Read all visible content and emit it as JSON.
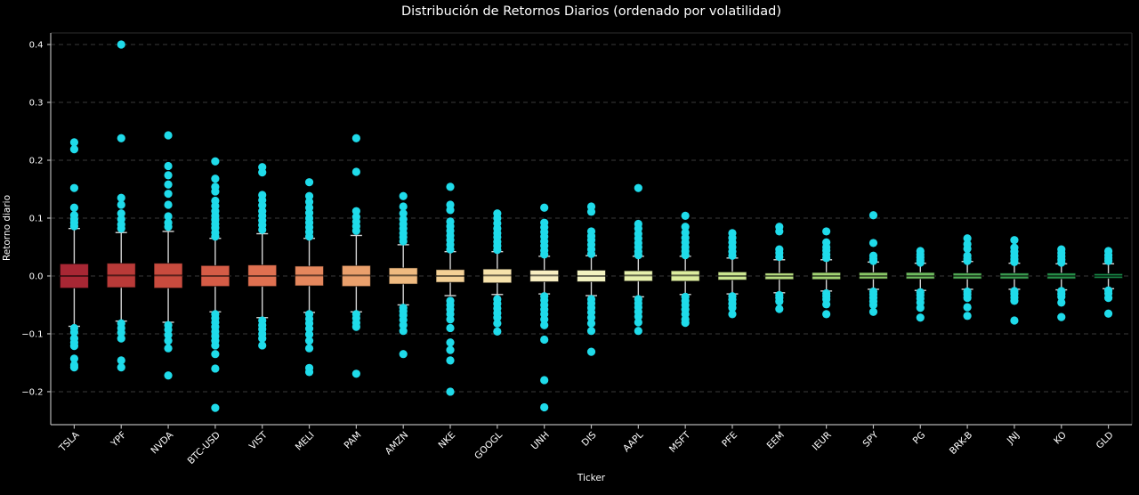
{
  "chart_data": {
    "type": "boxplot",
    "title": "Distribución de Retornos Diarios (ordenado por volatilidad)",
    "xlabel": "Ticker",
    "ylabel": "Retorno diario",
    "ylim": [
      -0.257,
      0.42
    ],
    "yticks": [
      {
        "v": 0.4,
        "label": "0.4"
      },
      {
        "v": 0.3,
        "label": "0.3"
      },
      {
        "v": 0.2,
        "label": "0.2"
      },
      {
        "v": 0.1,
        "label": "0.1"
      },
      {
        "v": 0.0,
        "label": "0.0"
      },
      {
        "v": -0.1,
        "label": "−0.1"
      },
      {
        "v": -0.2,
        "label": "−0.2"
      }
    ],
    "grid": "horizontal-dashed",
    "legend": null,
    "palette": "RdYlGn (red = most volatile, green = least volatile)",
    "colors": {
      "background": "#000000",
      "text": "#ffffff",
      "grid": "#3a3a3a",
      "spine": "#b4b4b4",
      "spine_faint": "#2e2e2e",
      "whisker": "#d4d4d4",
      "box_edge": "rgba(0,0,0,0.6)",
      "median": "rgba(0,0,0,0.55)",
      "outlier": "#1fdbea"
    },
    "series": [
      {
        "label": "TSLA",
        "color": "#a82734",
        "whisker_low": -0.087,
        "q1": -0.021,
        "median": 0.0,
        "q3": 0.021,
        "whisker_high": 0.082,
        "outliers": [
          0.231,
          0.219,
          0.152,
          0.118,
          0.105,
          0.098,
          0.092,
          0.086,
          -0.09,
          -0.097,
          -0.108,
          -0.115,
          -0.121,
          -0.143,
          -0.154,
          -0.158
        ]
      },
      {
        "label": "YPF",
        "color": "#b93a38",
        "whisker_low": -0.078,
        "q1": -0.02,
        "median": 0.001,
        "q3": 0.022,
        "whisker_high": 0.075,
        "outliers": [
          0.4,
          0.238,
          0.135,
          0.123,
          0.108,
          0.098,
          0.089,
          0.082,
          -0.082,
          -0.09,
          -0.098,
          -0.108,
          -0.146,
          -0.158
        ]
      },
      {
        "label": "NVDA",
        "color": "#c84b3e",
        "whisker_low": -0.08,
        "q1": -0.021,
        "median": 0.001,
        "q3": 0.022,
        "whisker_high": 0.077,
        "outliers": [
          0.243,
          0.19,
          0.174,
          0.158,
          0.142,
          0.123,
          0.103,
          0.092,
          0.085,
          -0.085,
          -0.093,
          -0.102,
          -0.112,
          -0.125,
          -0.172
        ]
      },
      {
        "label": "BTC-USD",
        "color": "#d55c46",
        "whisker_low": -0.062,
        "q1": -0.018,
        "median": 0.0,
        "q3": 0.018,
        "whisker_high": 0.065,
        "outliers": [
          0.198,
          0.168,
          0.154,
          0.146,
          0.13,
          0.121,
          0.112,
          0.104,
          0.097,
          0.09,
          0.083,
          0.075,
          0.068,
          -0.066,
          -0.073,
          -0.08,
          -0.088,
          -0.096,
          -0.104,
          -0.112,
          -0.12,
          -0.135,
          -0.16,
          -0.228
        ]
      },
      {
        "label": "VIST",
        "color": "#df7050",
        "whisker_low": -0.072,
        "q1": -0.018,
        "median": 0.0,
        "q3": 0.019,
        "whisker_high": 0.073,
        "outliers": [
          0.188,
          0.179,
          0.14,
          0.131,
          0.122,
          0.112,
          0.104,
          0.096,
          0.088,
          0.08,
          -0.077,
          -0.085,
          -0.092,
          -0.1,
          -0.108,
          -0.12
        ]
      },
      {
        "label": "MELI",
        "color": "#e4875d",
        "whisker_low": -0.063,
        "q1": -0.017,
        "median": 0.001,
        "q3": 0.017,
        "whisker_high": 0.065,
        "outliers": [
          0.162,
          0.138,
          0.128,
          0.118,
          0.109,
          0.1,
          0.092,
          0.084,
          0.076,
          0.068,
          -0.066,
          -0.074,
          -0.082,
          -0.091,
          -0.101,
          -0.112,
          -0.125,
          -0.159,
          -0.166
        ]
      },
      {
        "label": "PAM",
        "color": "#eaa06c",
        "whisker_low": -0.062,
        "q1": -0.018,
        "median": 0.001,
        "q3": 0.018,
        "whisker_high": 0.07,
        "outliers": [
          0.238,
          0.18,
          0.112,
          0.102,
          0.094,
          0.086,
          0.078,
          -0.066,
          -0.073,
          -0.081,
          -0.088,
          -0.169
        ]
      },
      {
        "label": "AMZN",
        "color": "#efba80",
        "whisker_low": -0.05,
        "q1": -0.014,
        "median": 0.001,
        "q3": 0.014,
        "whisker_high": 0.054,
        "outliers": [
          0.138,
          0.12,
          0.108,
          0.098,
          0.09,
          0.082,
          0.074,
          0.067,
          0.06,
          -0.055,
          -0.061,
          -0.068,
          -0.076,
          -0.085,
          -0.095,
          -0.135
        ]
      },
      {
        "label": "NKE",
        "color": "#f3d096",
        "whisker_low": -0.034,
        "q1": -0.011,
        "median": 0.0,
        "q3": 0.011,
        "whisker_high": 0.042,
        "outliers": [
          0.154,
          0.123,
          0.114,
          0.094,
          0.086,
          0.078,
          0.07,
          0.062,
          0.054,
          0.046,
          -0.043,
          -0.05,
          -0.058,
          -0.066,
          -0.075,
          -0.09,
          -0.115,
          -0.128,
          -0.146,
          -0.2
        ]
      },
      {
        "label": "GOOGL",
        "color": "#f6e2ab",
        "whisker_low": -0.032,
        "q1": -0.012,
        "median": 0.001,
        "q3": 0.012,
        "whisker_high": 0.042,
        "outliers": [
          0.108,
          0.1,
          0.091,
          0.082,
          0.074,
          0.067,
          0.059,
          0.052,
          0.045,
          -0.04,
          -0.048,
          -0.056,
          -0.064,
          -0.072,
          -0.082,
          -0.096
        ]
      },
      {
        "label": "UNH",
        "color": "#f9efc2",
        "whisker_low": -0.031,
        "q1": -0.01,
        "median": 0.001,
        "q3": 0.01,
        "whisker_high": 0.034,
        "outliers": [
          0.118,
          0.092,
          0.084,
          0.076,
          0.068,
          0.06,
          0.052,
          0.044,
          0.037,
          -0.035,
          -0.042,
          -0.05,
          -0.058,
          -0.066,
          -0.075,
          -0.085,
          -0.11,
          -0.18,
          -0.227
        ]
      },
      {
        "label": "DIS",
        "color": "#f2f2c0",
        "whisker_low": -0.034,
        "q1": -0.01,
        "median": 0.0,
        "q3": 0.01,
        "whisker_high": 0.035,
        "outliers": [
          0.12,
          0.111,
          0.077,
          0.069,
          0.062,
          0.054,
          0.046,
          0.038,
          -0.04,
          -0.047,
          -0.055,
          -0.063,
          -0.072,
          -0.082,
          -0.095,
          -0.131
        ]
      },
      {
        "label": "AAPL",
        "color": "#e7f0ad",
        "whisker_low": -0.036,
        "q1": -0.009,
        "median": 0.001,
        "q3": 0.009,
        "whisker_high": 0.034,
        "outliers": [
          0.152,
          0.09,
          0.082,
          0.073,
          0.065,
          0.057,
          0.05,
          0.042,
          0.036,
          -0.04,
          -0.047,
          -0.054,
          -0.062,
          -0.07,
          -0.08,
          -0.095
        ]
      },
      {
        "label": "MSFT",
        "color": "#dcec9e",
        "whisker_low": -0.032,
        "q1": -0.009,
        "median": 0.001,
        "q3": 0.009,
        "whisker_high": 0.034,
        "outliers": [
          0.104,
          0.085,
          0.075,
          0.066,
          0.058,
          0.05,
          0.043,
          0.036,
          -0.036,
          -0.043,
          -0.05,
          -0.058,
          -0.066,
          -0.075,
          -0.081
        ]
      },
      {
        "label": "PFE",
        "color": "#cbe690",
        "whisker_low": -0.031,
        "q1": -0.007,
        "median": 0.0,
        "q3": 0.007,
        "whisker_high": 0.031,
        "outliers": [
          0.074,
          0.066,
          0.058,
          0.05,
          0.042,
          0.035,
          -0.035,
          -0.041,
          -0.048,
          -0.055,
          -0.066
        ]
      },
      {
        "label": "EEM",
        "color": "#b8dd81",
        "whisker_low": -0.029,
        "q1": -0.006,
        "median": 0.0,
        "q3": 0.005,
        "whisker_high": 0.028,
        "outliers": [
          0.085,
          0.077,
          0.046,
          0.04,
          0.033,
          -0.033,
          -0.038,
          -0.044,
          -0.057
        ]
      },
      {
        "label": "IEUR",
        "color": "#a2d373",
        "whisker_low": -0.026,
        "q1": -0.006,
        "median": 0.0,
        "q3": 0.006,
        "whisker_high": 0.028,
        "outliers": [
          0.077,
          0.058,
          0.05,
          0.044,
          0.037,
          0.031,
          -0.03,
          -0.035,
          -0.04,
          -0.049,
          -0.066
        ]
      },
      {
        "label": "SPY",
        "color": "#89c766",
        "whisker_low": -0.023,
        "q1": -0.005,
        "median": 0.0,
        "q3": 0.006,
        "whisker_high": 0.024,
        "outliers": [
          0.105,
          0.057,
          0.035,
          0.03,
          0.026,
          -0.027,
          -0.032,
          -0.038,
          -0.044,
          -0.05,
          -0.062
        ]
      },
      {
        "label": "PG",
        "color": "#6fbc5f",
        "whisker_low": -0.025,
        "q1": -0.005,
        "median": 0.0,
        "q3": 0.006,
        "whisker_high": 0.022,
        "outliers": [
          0.043,
          0.037,
          0.032,
          0.027,
          0.023,
          -0.028,
          -0.033,
          -0.039,
          -0.046,
          -0.055,
          -0.072
        ]
      },
      {
        "label": "BRK-B",
        "color": "#52ac56",
        "whisker_low": -0.023,
        "q1": -0.005,
        "median": 0.0,
        "q3": 0.005,
        "whisker_high": 0.025,
        "outliers": [
          0.065,
          0.055,
          0.047,
          0.035,
          0.03,
          0.026,
          -0.027,
          -0.032,
          -0.038,
          -0.054,
          -0.069
        ]
      },
      {
        "label": "JNJ",
        "color": "#3a9d50",
        "whisker_low": -0.023,
        "q1": -0.005,
        "median": 0.0,
        "q3": 0.005,
        "whisker_high": 0.022,
        "outliers": [
          0.062,
          0.049,
          0.042,
          0.035,
          0.029,
          0.024,
          -0.026,
          -0.031,
          -0.037,
          -0.043,
          -0.077
        ]
      },
      {
        "label": "KO",
        "color": "#27914a",
        "whisker_low": -0.024,
        "q1": -0.005,
        "median": 0.0,
        "q3": 0.005,
        "whisker_high": 0.021,
        "outliers": [
          0.046,
          0.04,
          0.034,
          0.028,
          0.023,
          -0.026,
          -0.031,
          -0.036,
          -0.046,
          -0.071
        ]
      },
      {
        "label": "GLD",
        "color": "#178445",
        "whisker_low": -0.022,
        "q1": -0.004,
        "median": 0.0,
        "q3": 0.004,
        "whisker_high": 0.021,
        "outliers": [
          0.043,
          0.036,
          0.031,
          0.026,
          -0.025,
          -0.03,
          -0.038,
          -0.065
        ]
      }
    ]
  }
}
